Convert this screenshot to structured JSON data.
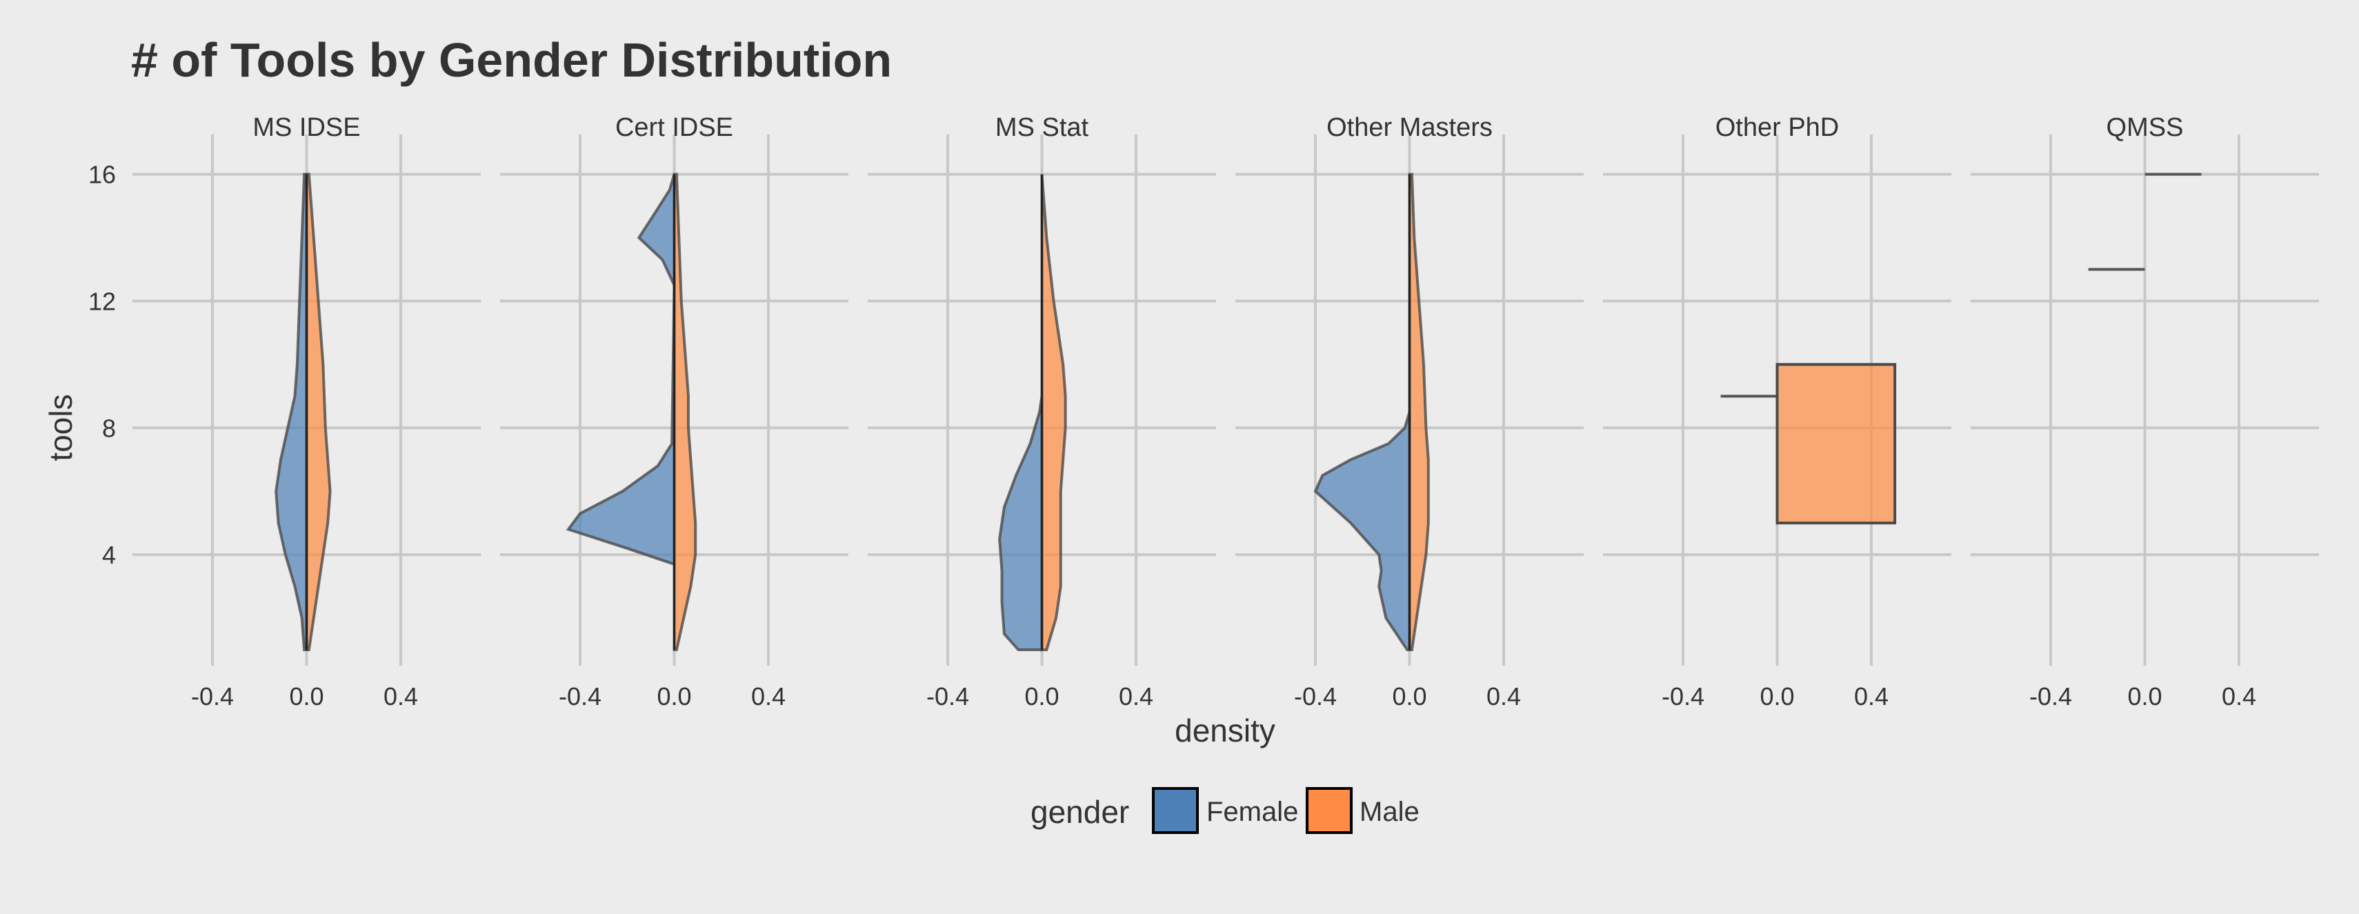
{
  "chart_data": {
    "type": "violin",
    "title": "# of Tools by Gender Distribution",
    "xlabel": "density",
    "ylabel": "tools",
    "yticks": [
      4,
      8,
      12,
      16
    ],
    "ylim": [
      0.5,
      16.6
    ],
    "xticks": [
      -0.4,
      0.0,
      0.4
    ],
    "xtick_labels": [
      "-0.4",
      "0.0",
      "0.4"
    ],
    "xlim": [
      -0.74,
      0.74
    ],
    "grid": true,
    "legend": {
      "title": "gender",
      "position": "bottom",
      "entries": [
        {
          "label": "Female",
          "color": "#4e80b8"
        },
        {
          "label": "Male",
          "color": "#ff8c42"
        }
      ]
    },
    "panels": [
      {
        "name": "MS IDSE",
        "female": [
          [
            1,
            0.01
          ],
          [
            2,
            0.02
          ],
          [
            3,
            0.05
          ],
          [
            4,
            0.09
          ],
          [
            5,
            0.12
          ],
          [
            6,
            0.13
          ],
          [
            7,
            0.11
          ],
          [
            8,
            0.08
          ],
          [
            9,
            0.05
          ],
          [
            10,
            0.04
          ],
          [
            12,
            0.03
          ],
          [
            14,
            0.02
          ],
          [
            16,
            0.01
          ]
        ],
        "male": [
          [
            1,
            0.01
          ],
          [
            2,
            0.03
          ],
          [
            3,
            0.05
          ],
          [
            4,
            0.07
          ],
          [
            5,
            0.09
          ],
          [
            6,
            0.1
          ],
          [
            7,
            0.09
          ],
          [
            8,
            0.08
          ],
          [
            10,
            0.07
          ],
          [
            12,
            0.05
          ],
          [
            14,
            0.03
          ],
          [
            16,
            0.01
          ]
        ]
      },
      {
        "name": "Cert IDSE",
        "female": [
          [
            3.7,
            0.0
          ],
          [
            4.2,
            0.2
          ],
          [
            4.8,
            0.45
          ],
          [
            5.3,
            0.4
          ],
          [
            6,
            0.22
          ],
          [
            6.8,
            0.07
          ],
          [
            7.5,
            0.01
          ],
          [
            12.5,
            0.0
          ],
          [
            13.3,
            0.05
          ],
          [
            14,
            0.15
          ],
          [
            14.8,
            0.08
          ],
          [
            15.5,
            0.02
          ],
          [
            16,
            0.0
          ]
        ],
        "male": [
          [
            1,
            0.01
          ],
          [
            2,
            0.04
          ],
          [
            3,
            0.07
          ],
          [
            4,
            0.09
          ],
          [
            5,
            0.09
          ],
          [
            6,
            0.08
          ],
          [
            7,
            0.07
          ],
          [
            8,
            0.06
          ],
          [
            9,
            0.06
          ],
          [
            10,
            0.05
          ],
          [
            12,
            0.03
          ],
          [
            14,
            0.02
          ],
          [
            16,
            0.01
          ]
        ]
      },
      {
        "name": "MS Stat",
        "female": [
          [
            1,
            0.1
          ],
          [
            1.5,
            0.16
          ],
          [
            2.5,
            0.17
          ],
          [
            3.5,
            0.17
          ],
          [
            4.5,
            0.18
          ],
          [
            5.5,
            0.16
          ],
          [
            6.5,
            0.11
          ],
          [
            7.5,
            0.05
          ],
          [
            8.5,
            0.01
          ],
          [
            9,
            0.0
          ]
        ],
        "male": [
          [
            1,
            0.02
          ],
          [
            2,
            0.06
          ],
          [
            3,
            0.08
          ],
          [
            4,
            0.08
          ],
          [
            5,
            0.08
          ],
          [
            6,
            0.08
          ],
          [
            7,
            0.09
          ],
          [
            8,
            0.1
          ],
          [
            9,
            0.1
          ],
          [
            10,
            0.09
          ],
          [
            11,
            0.07
          ],
          [
            12,
            0.05
          ],
          [
            14,
            0.02
          ],
          [
            16,
            0.0
          ]
        ]
      },
      {
        "name": "Other Masters",
        "female": [
          [
            1,
            0.01
          ],
          [
            2,
            0.1
          ],
          [
            3,
            0.13
          ],
          [
            3.5,
            0.12
          ],
          [
            4,
            0.13
          ],
          [
            5,
            0.25
          ],
          [
            6,
            0.4
          ],
          [
            6.5,
            0.37
          ],
          [
            7,
            0.25
          ],
          [
            7.5,
            0.09
          ],
          [
            8,
            0.02
          ],
          [
            8.5,
            0.0
          ]
        ],
        "male": [
          [
            1,
            0.01
          ],
          [
            2,
            0.03
          ],
          [
            3,
            0.05
          ],
          [
            4,
            0.07
          ],
          [
            5,
            0.08
          ],
          [
            6,
            0.08
          ],
          [
            7,
            0.08
          ],
          [
            8,
            0.07
          ],
          [
            10,
            0.06
          ],
          [
            12,
            0.04
          ],
          [
            14,
            0.02
          ],
          [
            16,
            0.01
          ]
        ]
      },
      {
        "name": "Other PhD",
        "female_lines": [
          {
            "tools": 9,
            "density": 1.0
          }
        ],
        "male_rect": {
          "from": 5,
          "to": 10,
          "density": 0.5
        }
      },
      {
        "name": "QMSS",
        "female_lines": [
          {
            "tools": 13,
            "density": 1.0
          }
        ],
        "male_lines": [
          {
            "tools": 16,
            "density": 1.0
          }
        ]
      }
    ]
  }
}
